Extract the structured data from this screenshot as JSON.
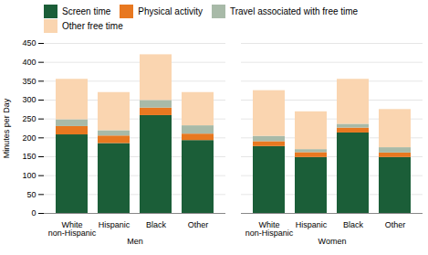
{
  "chart_data": {
    "type": "bar",
    "stacked": true,
    "groups": [
      "Men",
      "Women"
    ],
    "categories": [
      "White\nnon-Hispanic",
      "Hispanic",
      "Black",
      "Other"
    ],
    "series": [
      {
        "name": "Screen time",
        "color": "#1b5e38",
        "values": [
          [
            208,
            185,
            259,
            193
          ],
          [
            177,
            148,
            213,
            148
          ]
        ]
      },
      {
        "name": "Physical activity",
        "color": "#e87820",
        "values": [
          [
            22,
            20,
            20,
            17
          ],
          [
            13,
            13,
            13,
            12
          ]
        ]
      },
      {
        "name": "Travel associated with free time",
        "color": "#a8baa8",
        "values": [
          [
            18,
            14,
            20,
            22
          ],
          [
            14,
            8,
            10,
            14
          ]
        ]
      },
      {
        "name": "Other free time",
        "color": "#fad5b0",
        "values": [
          [
            107,
            101,
            121,
            88
          ],
          [
            121,
            100,
            119,
            101
          ]
        ]
      }
    ],
    "ylabel": "Minutes per Day",
    "ylim": [
      0,
      450
    ],
    "yticks": [
      0,
      50,
      100,
      150,
      200,
      250,
      300,
      350,
      400,
      450
    ],
    "grid": true,
    "legend": "top"
  }
}
